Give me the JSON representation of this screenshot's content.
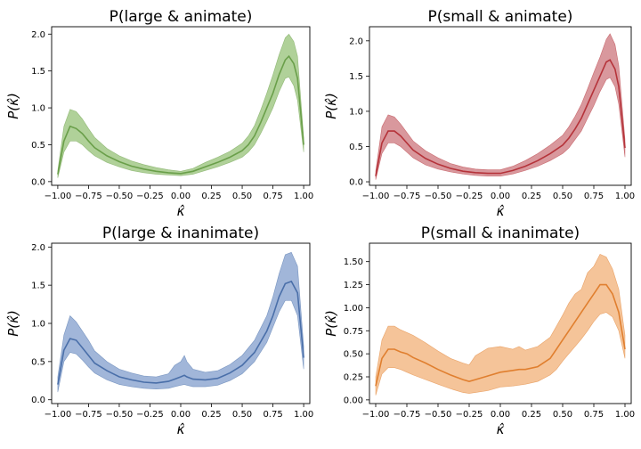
{
  "chart_data": [
    {
      "type": "area",
      "title": "P(large & animate)",
      "xlabel": "κ̂",
      "ylabel": "P(κ̂)",
      "xlim": [
        -1.05,
        1.05
      ],
      "ylim": [
        -0.05,
        2.1
      ],
      "xticks": [
        "-1.00",
        "-0.75",
        "-0.50",
        "-0.25",
        "0.00",
        "0.25",
        "0.50",
        "0.75",
        "1.00"
      ],
      "yticks": [
        "0.0",
        "0.5",
        "1.0",
        "1.5",
        "2.0"
      ],
      "color": "#6a9f4a",
      "band_color": "#9cc57f",
      "grid": false,
      "x": [
        -1.0,
        -0.95,
        -0.9,
        -0.85,
        -0.8,
        -0.75,
        -0.7,
        -0.6,
        -0.5,
        -0.4,
        -0.3,
        -0.2,
        -0.1,
        0.0,
        0.1,
        0.2,
        0.3,
        0.4,
        0.5,
        0.55,
        0.6,
        0.65,
        0.7,
        0.75,
        0.8,
        0.85,
        0.88,
        0.92,
        0.95,
        1.0
      ],
      "mean": [
        0.1,
        0.55,
        0.75,
        0.72,
        0.65,
        0.55,
        0.46,
        0.35,
        0.27,
        0.21,
        0.17,
        0.14,
        0.12,
        0.11,
        0.14,
        0.2,
        0.26,
        0.33,
        0.42,
        0.5,
        0.62,
        0.8,
        1.0,
        1.2,
        1.45,
        1.65,
        1.7,
        1.6,
        1.4,
        0.5
      ],
      "lower": [
        0.05,
        0.4,
        0.55,
        0.55,
        0.5,
        0.42,
        0.35,
        0.26,
        0.2,
        0.15,
        0.12,
        0.1,
        0.09,
        0.08,
        0.1,
        0.15,
        0.2,
        0.26,
        0.33,
        0.4,
        0.5,
        0.65,
        0.82,
        1.0,
        1.22,
        1.4,
        1.42,
        1.3,
        1.1,
        0.4
      ],
      "upper": [
        0.15,
        0.75,
        0.98,
        0.95,
        0.85,
        0.72,
        0.6,
        0.45,
        0.35,
        0.28,
        0.23,
        0.19,
        0.16,
        0.14,
        0.18,
        0.26,
        0.33,
        0.41,
        0.52,
        0.62,
        0.76,
        0.97,
        1.2,
        1.45,
        1.72,
        1.95,
        2.0,
        1.9,
        1.7,
        0.6
      ]
    },
    {
      "type": "area",
      "title": "P(small & animate)",
      "xlabel": "κ̂",
      "ylabel": "P(κ̂)",
      "xlim": [
        -1.05,
        1.05
      ],
      "ylim": [
        -0.05,
        2.2
      ],
      "xticks": [
        "-1.00",
        "-0.75",
        "-0.50",
        "-0.25",
        "0.00",
        "0.25",
        "0.50",
        "0.75",
        "1.00"
      ],
      "yticks": [
        "0.0",
        "0.5",
        "1.0",
        "1.5",
        "2.0"
      ],
      "color": "#b5333a",
      "band_color": "#d07e84",
      "grid": false,
      "x": [
        -1.0,
        -0.95,
        -0.9,
        -0.85,
        -0.8,
        -0.75,
        -0.7,
        -0.6,
        -0.5,
        -0.4,
        -0.3,
        -0.2,
        -0.1,
        0.0,
        0.1,
        0.2,
        0.3,
        0.4,
        0.5,
        0.55,
        0.6,
        0.65,
        0.7,
        0.75,
        0.8,
        0.85,
        0.88,
        0.92,
        0.95,
        1.0
      ],
      "mean": [
        0.08,
        0.55,
        0.72,
        0.72,
        0.65,
        0.55,
        0.45,
        0.33,
        0.25,
        0.19,
        0.15,
        0.13,
        0.12,
        0.12,
        0.16,
        0.22,
        0.3,
        0.4,
        0.52,
        0.62,
        0.75,
        0.9,
        1.1,
        1.3,
        1.5,
        1.7,
        1.73,
        1.6,
        1.35,
        0.48
      ],
      "lower": [
        0.03,
        0.4,
        0.55,
        0.55,
        0.5,
        0.42,
        0.34,
        0.24,
        0.18,
        0.14,
        0.11,
        0.09,
        0.08,
        0.08,
        0.11,
        0.16,
        0.22,
        0.3,
        0.4,
        0.48,
        0.6,
        0.72,
        0.9,
        1.08,
        1.28,
        1.45,
        1.48,
        1.35,
        1.1,
        0.35
      ],
      "upper": [
        0.15,
        0.78,
        0.95,
        0.92,
        0.82,
        0.7,
        0.58,
        0.44,
        0.34,
        0.26,
        0.21,
        0.18,
        0.17,
        0.17,
        0.22,
        0.3,
        0.4,
        0.52,
        0.66,
        0.78,
        0.93,
        1.1,
        1.32,
        1.55,
        1.77,
        2.02,
        2.1,
        1.95,
        1.65,
        0.6
      ]
    },
    {
      "type": "area",
      "title": "P(large & inanimate)",
      "xlabel": "κ̂",
      "ylabel": "P(κ̂)",
      "xlim": [
        -1.05,
        1.05
      ],
      "ylim": [
        -0.05,
        2.05
      ],
      "xticks": [
        "-1.00",
        "-0.75",
        "-0.50",
        "-0.25",
        "0.00",
        "0.25",
        "0.50",
        "0.75",
        "1.00"
      ],
      "yticks": [
        "0.0",
        "0.5",
        "1.0",
        "1.5",
        "2.0"
      ],
      "color": "#4a6fa9",
      "band_color": "#8aa4cf",
      "grid": false,
      "x": [
        -1.0,
        -0.95,
        -0.9,
        -0.85,
        -0.8,
        -0.75,
        -0.7,
        -0.6,
        -0.5,
        -0.4,
        -0.3,
        -0.2,
        -0.1,
        -0.05,
        0.0,
        0.03,
        0.05,
        0.1,
        0.2,
        0.3,
        0.4,
        0.5,
        0.6,
        0.7,
        0.75,
        0.8,
        0.85,
        0.9,
        0.95,
        1.0
      ],
      "mean": [
        0.2,
        0.65,
        0.8,
        0.78,
        0.68,
        0.58,
        0.48,
        0.38,
        0.3,
        0.26,
        0.23,
        0.22,
        0.24,
        0.27,
        0.3,
        0.32,
        0.3,
        0.27,
        0.26,
        0.28,
        0.35,
        0.45,
        0.62,
        0.9,
        1.1,
        1.35,
        1.52,
        1.55,
        1.4,
        0.55
      ],
      "lower": [
        0.1,
        0.5,
        0.62,
        0.6,
        0.52,
        0.43,
        0.35,
        0.26,
        0.2,
        0.17,
        0.15,
        0.14,
        0.15,
        0.17,
        0.19,
        0.2,
        0.19,
        0.17,
        0.17,
        0.19,
        0.25,
        0.34,
        0.5,
        0.75,
        0.95,
        1.15,
        1.3,
        1.3,
        1.1,
        0.4
      ],
      "upper": [
        0.3,
        0.85,
        1.1,
        1.02,
        0.9,
        0.78,
        0.64,
        0.5,
        0.4,
        0.35,
        0.31,
        0.3,
        0.34,
        0.45,
        0.5,
        0.58,
        0.5,
        0.4,
        0.36,
        0.38,
        0.46,
        0.58,
        0.78,
        1.1,
        1.35,
        1.65,
        1.9,
        1.93,
        1.75,
        0.7
      ]
    },
    {
      "type": "area",
      "title": "P(small & inanimate)",
      "xlabel": "κ̂",
      "ylabel": "P(κ̂)",
      "xlim": [
        -1.05,
        1.05
      ],
      "ylim": [
        -0.04,
        1.7
      ],
      "xticks": [
        "-1.00",
        "-0.75",
        "-0.50",
        "-0.25",
        "0.00",
        "0.25",
        "0.50",
        "0.75",
        "1.00"
      ],
      "yticks": [
        "0.00",
        "0.25",
        "0.50",
        "0.75",
        "1.00",
        "1.25",
        "1.50"
      ],
      "color": "#e07f2f",
      "band_color": "#f2b57f",
      "grid": false,
      "x": [
        -1.0,
        -0.95,
        -0.9,
        -0.85,
        -0.8,
        -0.75,
        -0.7,
        -0.6,
        -0.5,
        -0.4,
        -0.3,
        -0.25,
        -0.2,
        -0.1,
        0.0,
        0.1,
        0.15,
        0.2,
        0.3,
        0.4,
        0.45,
        0.5,
        0.55,
        0.6,
        0.65,
        0.7,
        0.75,
        0.8,
        0.85,
        0.9,
        0.95,
        1.0
      ],
      "mean": [
        0.15,
        0.45,
        0.55,
        0.55,
        0.52,
        0.5,
        0.46,
        0.4,
        0.33,
        0.27,
        0.22,
        0.2,
        0.22,
        0.26,
        0.3,
        0.32,
        0.33,
        0.33,
        0.36,
        0.45,
        0.55,
        0.65,
        0.75,
        0.85,
        0.95,
        1.05,
        1.15,
        1.25,
        1.25,
        1.15,
        0.95,
        0.55
      ],
      "lower": [
        0.05,
        0.28,
        0.35,
        0.35,
        0.33,
        0.3,
        0.27,
        0.22,
        0.17,
        0.12,
        0.08,
        0.07,
        0.08,
        0.1,
        0.14,
        0.15,
        0.16,
        0.17,
        0.2,
        0.27,
        0.33,
        0.42,
        0.5,
        0.58,
        0.66,
        0.75,
        0.85,
        0.93,
        0.95,
        0.9,
        0.75,
        0.45
      ],
      "upper": [
        0.25,
        0.65,
        0.8,
        0.8,
        0.76,
        0.73,
        0.7,
        0.62,
        0.53,
        0.45,
        0.4,
        0.38,
        0.48,
        0.56,
        0.58,
        0.55,
        0.58,
        0.54,
        0.58,
        0.68,
        0.8,
        0.92,
        1.05,
        1.15,
        1.2,
        1.38,
        1.45,
        1.58,
        1.55,
        1.42,
        1.2,
        0.7
      ]
    }
  ]
}
